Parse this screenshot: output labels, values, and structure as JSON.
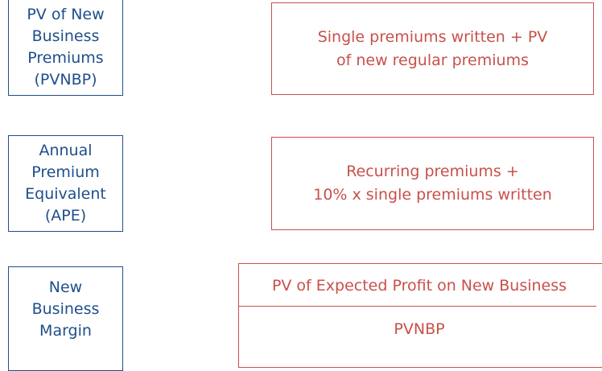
{
  "rows": [
    {
      "label": [
        "PV of New",
        "Business",
        "Premiums",
        "(PVNBP)"
      ],
      "definition": [
        "Single premiums written + PV",
        "of new regular premiums"
      ]
    },
    {
      "label": [
        "Annual",
        "Premium",
        "Equivalent",
        "(APE)"
      ],
      "definition": [
        "Recurring premiums +",
        "10% x single premiums written"
      ]
    },
    {
      "label": [
        "New",
        "Business",
        "Margin"
      ],
      "numerator": "PV of Expected Profit on New Business",
      "denominator": "PVNBP"
    }
  ]
}
